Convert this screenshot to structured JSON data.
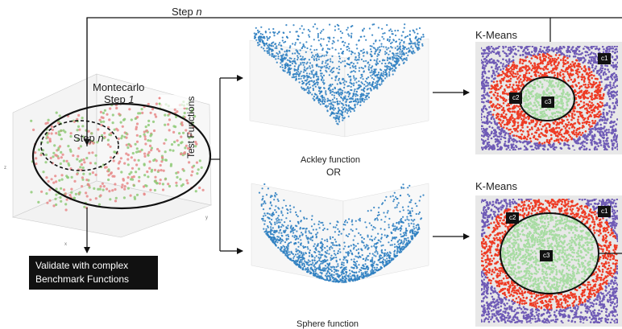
{
  "labels": {
    "step_top_prefix": "Step ",
    "step_top_var": "n",
    "montecarlo": "Montecarlo",
    "step1_prefix": "Step ",
    "step1_var": "1",
    "stepn_prefix": "Step ",
    "stepn_var": "n",
    "test_functions": "Test Functions",
    "ackley": "Ackley function",
    "or": "OR",
    "sphere": "Sphere function",
    "kmeans_top": "K-Means",
    "kmeans_bottom": "K-Means",
    "validate_line1": "Validate with complex",
    "validate_line2": "Benchmark Functions"
  },
  "clusters": {
    "top": {
      "c1": "c1",
      "c2": "c2",
      "c3": "c3"
    },
    "bottom": {
      "c1": "c1",
      "c2": "c2",
      "c3": "c3"
    }
  },
  "colors": {
    "purple": "#6f5bb6",
    "red": "#ee3b24",
    "green": "#a8dca3",
    "blue": "#2f7fc1",
    "scatter_red": "#e88a8a",
    "scatter_green": "#8fca78"
  }
}
